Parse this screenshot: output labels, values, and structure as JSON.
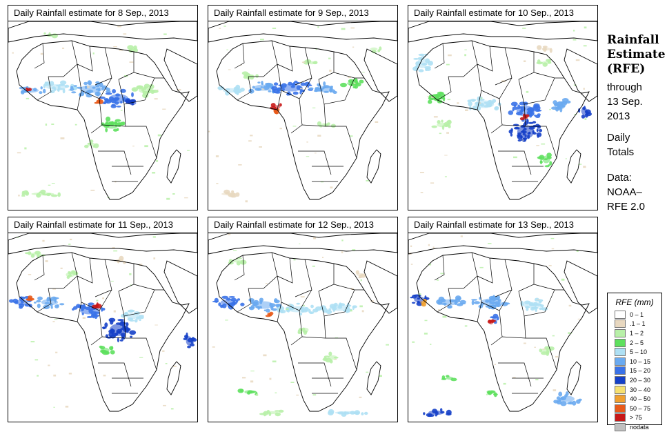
{
  "panels": [
    {
      "title": "Daily Rainfall estimate for  8 Sep., 2013",
      "pattern": "sahel-west"
    },
    {
      "title": "Daily Rainfall estimate for  9 Sep., 2013",
      "pattern": "sahel-central"
    },
    {
      "title": "Daily Rainfall estimate for  10 Sep., 2013",
      "pattern": "congo"
    },
    {
      "title": "Daily Rainfall estimate for  11 Sep., 2013",
      "pattern": "west-and-congo"
    },
    {
      "title": "Daily Rainfall estimate for  12 Sep., 2013",
      "pattern": "sahel-south"
    },
    {
      "title": "Daily Rainfall estimate for  13 Sep., 2013",
      "pattern": "west-coast"
    }
  ],
  "side": {
    "title_lines": [
      "Rainfall",
      "Estimate",
      "(RFE)"
    ],
    "through_lines": [
      "through",
      "13 Sep.",
      "2013"
    ],
    "totals_lines": [
      "Daily",
      "Totals"
    ],
    "data_lines": [
      "Data:",
      "NOAA–",
      "RFE 2.0"
    ]
  },
  "legend": {
    "title": "RFE (mm)",
    "items": [
      {
        "label": "0 – 1",
        "color": "#ffffff"
      },
      {
        "label": ".1 – 1",
        "color": "#e8d8c0"
      },
      {
        "label": "1 – 2",
        "color": "#b8f0a8"
      },
      {
        "label": "2 – 5",
        "color": "#5ee05e"
      },
      {
        "label": "5 – 10",
        "color": "#aee0f4"
      },
      {
        "label": "10 – 15",
        "color": "#6aaaf0"
      },
      {
        "label": "15 – 20",
        "color": "#3a72e8"
      },
      {
        "label": "20 – 30",
        "color": "#1540c8"
      },
      {
        "label": "30 – 40",
        "color": "#f6e070"
      },
      {
        "label": "40 – 50",
        "color": "#f0a030"
      },
      {
        "label": "50 – 75",
        "color": "#e85a1a"
      },
      {
        "label": "> 75",
        "color": "#c81818"
      },
      {
        "label": "nodata",
        "color": "#c0c0c0"
      }
    ]
  }
}
